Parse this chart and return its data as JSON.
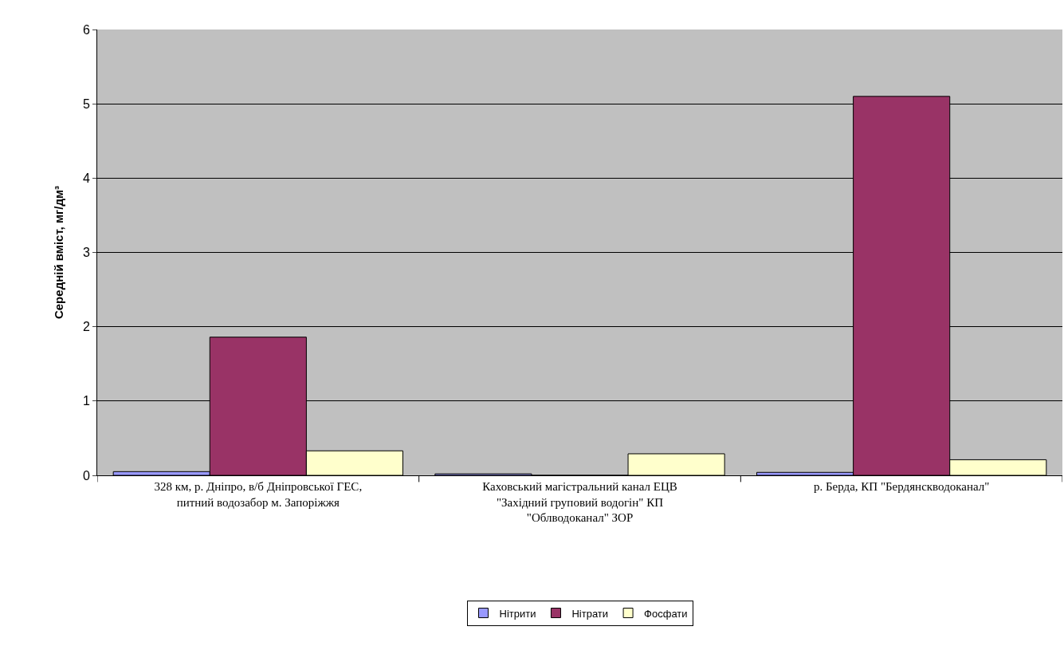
{
  "chart_data": {
    "type": "bar",
    "ylabel": "Середній вміст, мг/дм³",
    "categories": [
      "328 км, р. Дніпро, в/б Дніпровської ГЕС, питний водозабор м. Запоріжжя",
      "Каховський магістральний канал ЕЦВ \"Західний груповий водогін\" КП \"Облводоканал\" ЗОР",
      "р. Берда, КП \"Бердянскводоканал\""
    ],
    "series": [
      {
        "name": "Нітрити",
        "color": "#9999ff",
        "values": [
          0.05,
          0.02,
          0.04
        ]
      },
      {
        "name": "Нітрати",
        "color": "#993366",
        "values": [
          1.86,
          0,
          5.1
        ]
      },
      {
        "name": "Фосфати",
        "color": "#ffffcc",
        "values": [
          0.33,
          0.29,
          0.21
        ]
      }
    ],
    "ylim": [
      0,
      6
    ],
    "yticks": [
      0,
      1,
      2,
      3,
      4,
      5,
      6
    ],
    "grid": "y",
    "legend": "bottom"
  }
}
